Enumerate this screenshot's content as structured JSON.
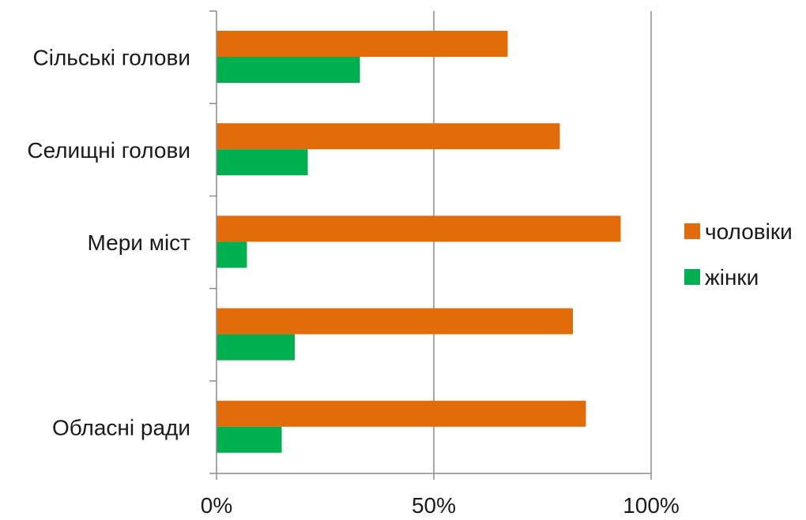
{
  "chart_data": {
    "type": "bar",
    "orientation": "horizontal",
    "categories": [
      "Сільські голови",
      "Селищні голови",
      "Мери міст",
      "",
      "Обласні ради"
    ],
    "series": [
      {
        "name": "чоловіки",
        "color": "#E36C0A",
        "values": [
          67,
          79,
          93,
          82,
          85
        ]
      },
      {
        "name": "жінки",
        "color": "#00B050",
        "values": [
          33,
          21,
          7,
          18,
          15
        ]
      }
    ],
    "xlim": [
      0,
      100
    ],
    "xticks": [
      0,
      50,
      100
    ],
    "xtick_labels": [
      "0%",
      "50%",
      "100%"
    ],
    "grid": "vertical",
    "legend_position": "right",
    "title": "",
    "xlabel": "",
    "ylabel": ""
  }
}
